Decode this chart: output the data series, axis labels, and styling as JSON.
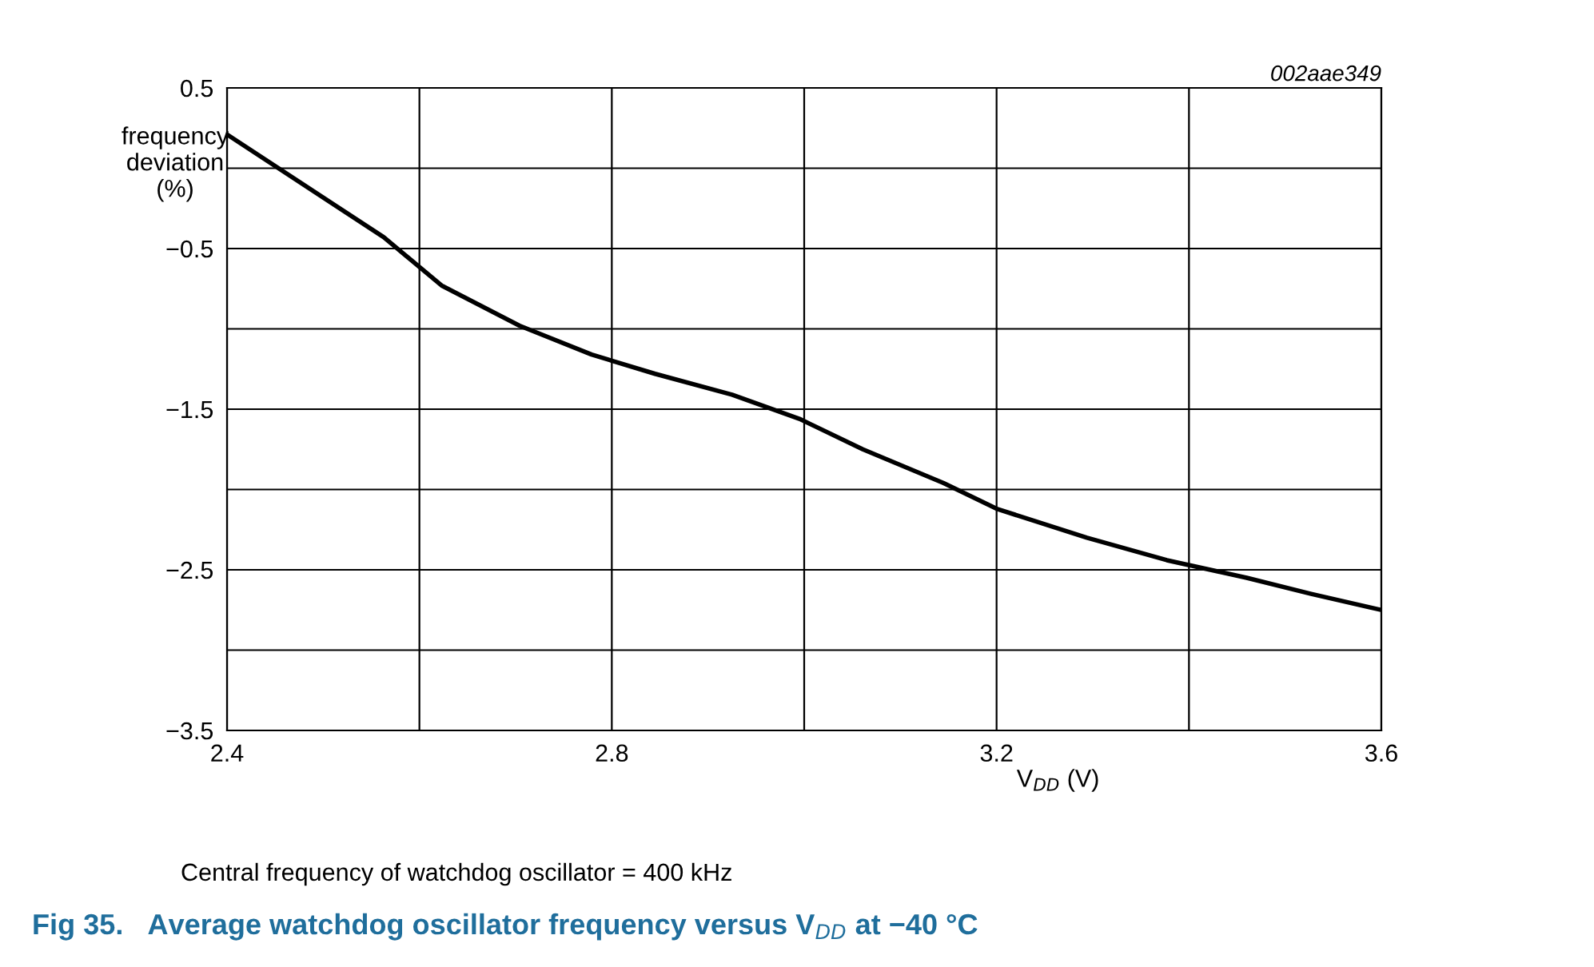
{
  "chart_data": {
    "type": "line",
    "title": "Fig 35.   Average watchdog oscillator frequency versus V$_{DD}$ at −40 °C",
    "xlabel": "V$_{DD}$ (V)",
    "ylabel": "frequency\ndeviation\n(%)",
    "annotations": [
      "002aae349",
      "Central frequency of watchdog oscillator = 400 kHz"
    ],
    "series": [
      {
        "color": "#000000",
        "x": [
          2.4,
          2.563,
          2.623,
          2.704,
          2.779,
          2.845,
          2.925,
          2.995,
          3.061,
          3.145,
          3.2,
          3.294,
          3.377,
          3.46,
          3.527,
          3.6
        ],
        "values": [
          0.21,
          -0.43,
          -0.73,
          -0.98,
          -1.16,
          -1.28,
          -1.41,
          -1.56,
          -1.75,
          -1.96,
          -2.12,
          -2.3,
          -2.44,
          -2.55,
          -2.65,
          -2.75
        ]
      }
    ],
    "xlim": [
      2.4,
      3.6
    ],
    "ylim": [
      -3.5,
      0.5
    ],
    "xticks": [
      2.4,
      {
        "value": 2.6,
        "label": null
      },
      2.8,
      {
        "value": 3.0,
        "label": null
      },
      3.2,
      {
        "value": 3.4,
        "label": null
      },
      3.6
    ],
    "yticks": [
      {
        "value": -3.5,
        "label": "−3.5"
      },
      {
        "value": -3.0,
        "label": null
      },
      {
        "value": -2.5,
        "label": "−2.5"
      },
      {
        "value": -2.0,
        "label": null
      },
      {
        "value": -1.5,
        "label": "−1.5"
      },
      {
        "value": -1.0,
        "label": null
      },
      {
        "value": -0.5,
        "label": "−0.5"
      },
      {
        "value": 0.0,
        "label": null
      },
      0.5
    ],
    "grid": true,
    "line_style": "solid",
    "marker": "none",
    "legend": false
  }
}
